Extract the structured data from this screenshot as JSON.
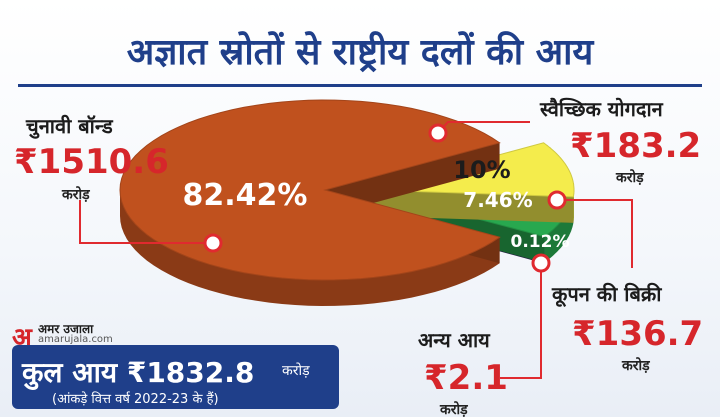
{
  "title": "अज्ञात स्रोतों से राष्ट्रीय दलों की आय",
  "unit": "करोड़",
  "logo": {
    "mark": "अ",
    "name": "अमर उजाला",
    "url": "amarujala.com"
  },
  "total": {
    "label": "कुल आय ₹1832.8",
    "unit": "करोड़",
    "note": "(आंकड़े वित्त वर्ष 2022-23 के हैं)"
  },
  "colors": {
    "title": "#1f3f8a",
    "amount": "#d6262b",
    "callout": "#e02a2f"
  },
  "chart_data": {
    "type": "pie",
    "slices": [
      {
        "name": "चुनावी बॉन्ड",
        "amount": "₹1510.6",
        "value": 1510.6,
        "percent": "82.42%",
        "color": "#c0511e"
      },
      {
        "name": "स्वैच्छिक योगदान",
        "amount": "₹183.2",
        "value": 183.2,
        "percent": "10%",
        "color": "#f4ec4c"
      },
      {
        "name": "कूपन की बिक्री",
        "amount": "₹136.7",
        "value": 136.7,
        "percent": "7.46%",
        "color": "#28a84f"
      },
      {
        "name": "अन्य आय",
        "amount": "₹2.1",
        "value": 2.1,
        "percent": "0.12%",
        "color": "#3c2f6e"
      }
    ]
  }
}
